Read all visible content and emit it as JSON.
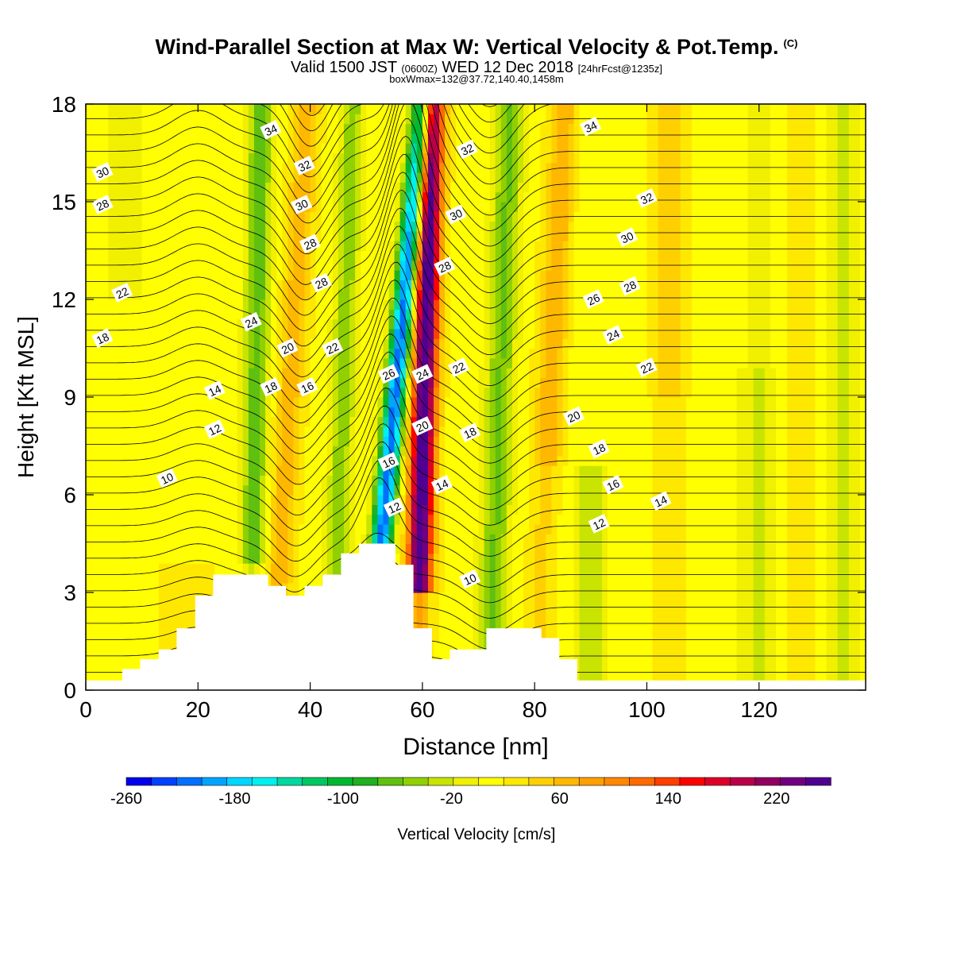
{
  "title": {
    "main": "Wind-Parallel Section at Max W: Vertical Velocity & Pot.Temp.",
    "copyright": "(C)",
    "valid_prefix": "Valid 1500 JST",
    "valid_z": "(0600Z)",
    "valid_date": "WED 12 Dec 2018",
    "forecast": "[24hrFcst@1235z]",
    "box_info": "boxWmax=132@37.72,140.40,1458m"
  },
  "chart_data": {
    "type": "heatmap",
    "xlabel": "Distance [nm]",
    "ylabel": "Height [Kft MSL]",
    "xlim": [
      0,
      139
    ],
    "ylim": [
      0,
      18
    ],
    "x_ticks": [
      "0",
      "20",
      "40",
      "60",
      "80",
      "100",
      "120"
    ],
    "y_ticks": [
      "0",
      "3",
      "6",
      "9",
      "12",
      "15",
      "18"
    ],
    "x_tick_values": [
      0,
      20,
      40,
      60,
      80,
      100,
      120
    ],
    "y_tick_values": [
      0,
      3,
      6,
      9,
      12,
      15,
      18
    ],
    "colorbar": {
      "label": "Vertical Velocity [cm/s]",
      "tick_labels": [
        "-260",
        "-180",
        "-100",
        "-20",
        "60",
        "140",
        "220"
      ],
      "tick_values": [
        -260,
        -180,
        -100,
        -20,
        60,
        140,
        220
      ],
      "range": [
        -260,
        260
      ],
      "colors": [
        "#0000ee",
        "#0040ff",
        "#0070ff",
        "#00a4ff",
        "#00d6ff",
        "#00f0f0",
        "#00d8a0",
        "#00c860",
        "#00b830",
        "#20b020",
        "#60c010",
        "#90d000",
        "#c8e400",
        "#f0f000",
        "#ffff00",
        "#ffe800",
        "#ffd000",
        "#ffb800",
        "#ffa000",
        "#ff8800",
        "#ff6a00",
        "#ff3e00",
        "#ff0000",
        "#dd0028",
        "#b80048",
        "#900060",
        "#700080",
        "#500090"
      ]
    },
    "terrain": [
      [
        0,
        0.3
      ],
      [
        6.5,
        0.3
      ],
      [
        6.5,
        0.65
      ],
      [
        9.7,
        0.65
      ],
      [
        9.7,
        0.95
      ],
      [
        13,
        0.95
      ],
      [
        13,
        1.25
      ],
      [
        16.2,
        1.25
      ],
      [
        16.2,
        1.9
      ],
      [
        19.5,
        1.9
      ],
      [
        19.5,
        2.9
      ],
      [
        22.7,
        2.9
      ],
      [
        22.7,
        3.55
      ],
      [
        32.5,
        3.55
      ],
      [
        32.5,
        3.2
      ],
      [
        35.7,
        3.2
      ],
      [
        35.7,
        2.9
      ],
      [
        39,
        2.9
      ],
      [
        39,
        3.2
      ],
      [
        42.2,
        3.2
      ],
      [
        42.2,
        3.55
      ],
      [
        45.5,
        3.55
      ],
      [
        45.5,
        4.2
      ],
      [
        48.7,
        4.2
      ],
      [
        48.7,
        4.5
      ],
      [
        55.2,
        4.5
      ],
      [
        55.2,
        3.85
      ],
      [
        58.4,
        3.85
      ],
      [
        58.4,
        1.9
      ],
      [
        61.7,
        1.9
      ],
      [
        61.7,
        0.95
      ],
      [
        64.9,
        0.95
      ],
      [
        64.9,
        1.25
      ],
      [
        71.4,
        1.25
      ],
      [
        71.4,
        1.9
      ],
      [
        81.2,
        1.9
      ],
      [
        81.2,
        1.6
      ],
      [
        84.4,
        1.6
      ],
      [
        84.4,
        0.95
      ],
      [
        87.6,
        0.95
      ],
      [
        87.6,
        0.3
      ],
      [
        139,
        0.3
      ]
    ],
    "contour_labels": [
      {
        "text": "34",
        "x": 33,
        "y": 17.2
      },
      {
        "text": "32",
        "x": 39,
        "y": 16.1
      },
      {
        "text": "30",
        "x": 38.5,
        "y": 14.9
      },
      {
        "text": "28",
        "x": 40,
        "y": 13.7
      },
      {
        "text": "28",
        "x": 42,
        "y": 12.5
      },
      {
        "text": "24",
        "x": 29.5,
        "y": 11.3
      },
      {
        "text": "20",
        "x": 36,
        "y": 10.5
      },
      {
        "text": "22",
        "x": 44,
        "y": 10.5
      },
      {
        "text": "18",
        "x": 33,
        "y": 9.3
      },
      {
        "text": "16",
        "x": 39.5,
        "y": 9.3
      },
      {
        "text": "14",
        "x": 23,
        "y": 9.2
      },
      {
        "text": "12",
        "x": 23,
        "y": 8.0
      },
      {
        "text": "10",
        "x": 14.5,
        "y": 6.5
      },
      {
        "text": "30",
        "x": 3,
        "y": 15.9
      },
      {
        "text": "28",
        "x": 3,
        "y": 14.9
      },
      {
        "text": "22",
        "x": 6.5,
        "y": 12.2
      },
      {
        "text": "18",
        "x": 3,
        "y": 10.8
      },
      {
        "text": "26",
        "x": 54,
        "y": 9.7
      },
      {
        "text": "24",
        "x": 60,
        "y": 9.7
      },
      {
        "text": "20",
        "x": 60,
        "y": 8.1
      },
      {
        "text": "16",
        "x": 54,
        "y": 7.0
      },
      {
        "text": "12",
        "x": 55,
        "y": 5.6
      },
      {
        "text": "14",
        "x": 63.5,
        "y": 6.3
      },
      {
        "text": "32",
        "x": 68,
        "y": 16.6
      },
      {
        "text": "30",
        "x": 66,
        "y": 14.6
      },
      {
        "text": "28",
        "x": 64,
        "y": 13.0
      },
      {
        "text": "22",
        "x": 66.5,
        "y": 9.9
      },
      {
        "text": "18",
        "x": 68.5,
        "y": 7.9
      },
      {
        "text": "10",
        "x": 68.5,
        "y": 3.4
      },
      {
        "text": "34",
        "x": 90,
        "y": 17.3
      },
      {
        "text": "32",
        "x": 100,
        "y": 15.1
      },
      {
        "text": "30",
        "x": 96.5,
        "y": 13.9
      },
      {
        "text": "26",
        "x": 90.5,
        "y": 12.0
      },
      {
        "text": "28",
        "x": 97,
        "y": 12.4
      },
      {
        "text": "24",
        "x": 94,
        "y": 10.9
      },
      {
        "text": "22",
        "x": 100,
        "y": 9.9
      },
      {
        "text": "20",
        "x": 87,
        "y": 8.4
      },
      {
        "text": "18",
        "x": 91.5,
        "y": 7.4
      },
      {
        "text": "16",
        "x": 94,
        "y": 6.3
      },
      {
        "text": "14",
        "x": 102.5,
        "y": 5.8
      },
      {
        "text": "12",
        "x": 91.5,
        "y": 5.1
      }
    ]
  }
}
